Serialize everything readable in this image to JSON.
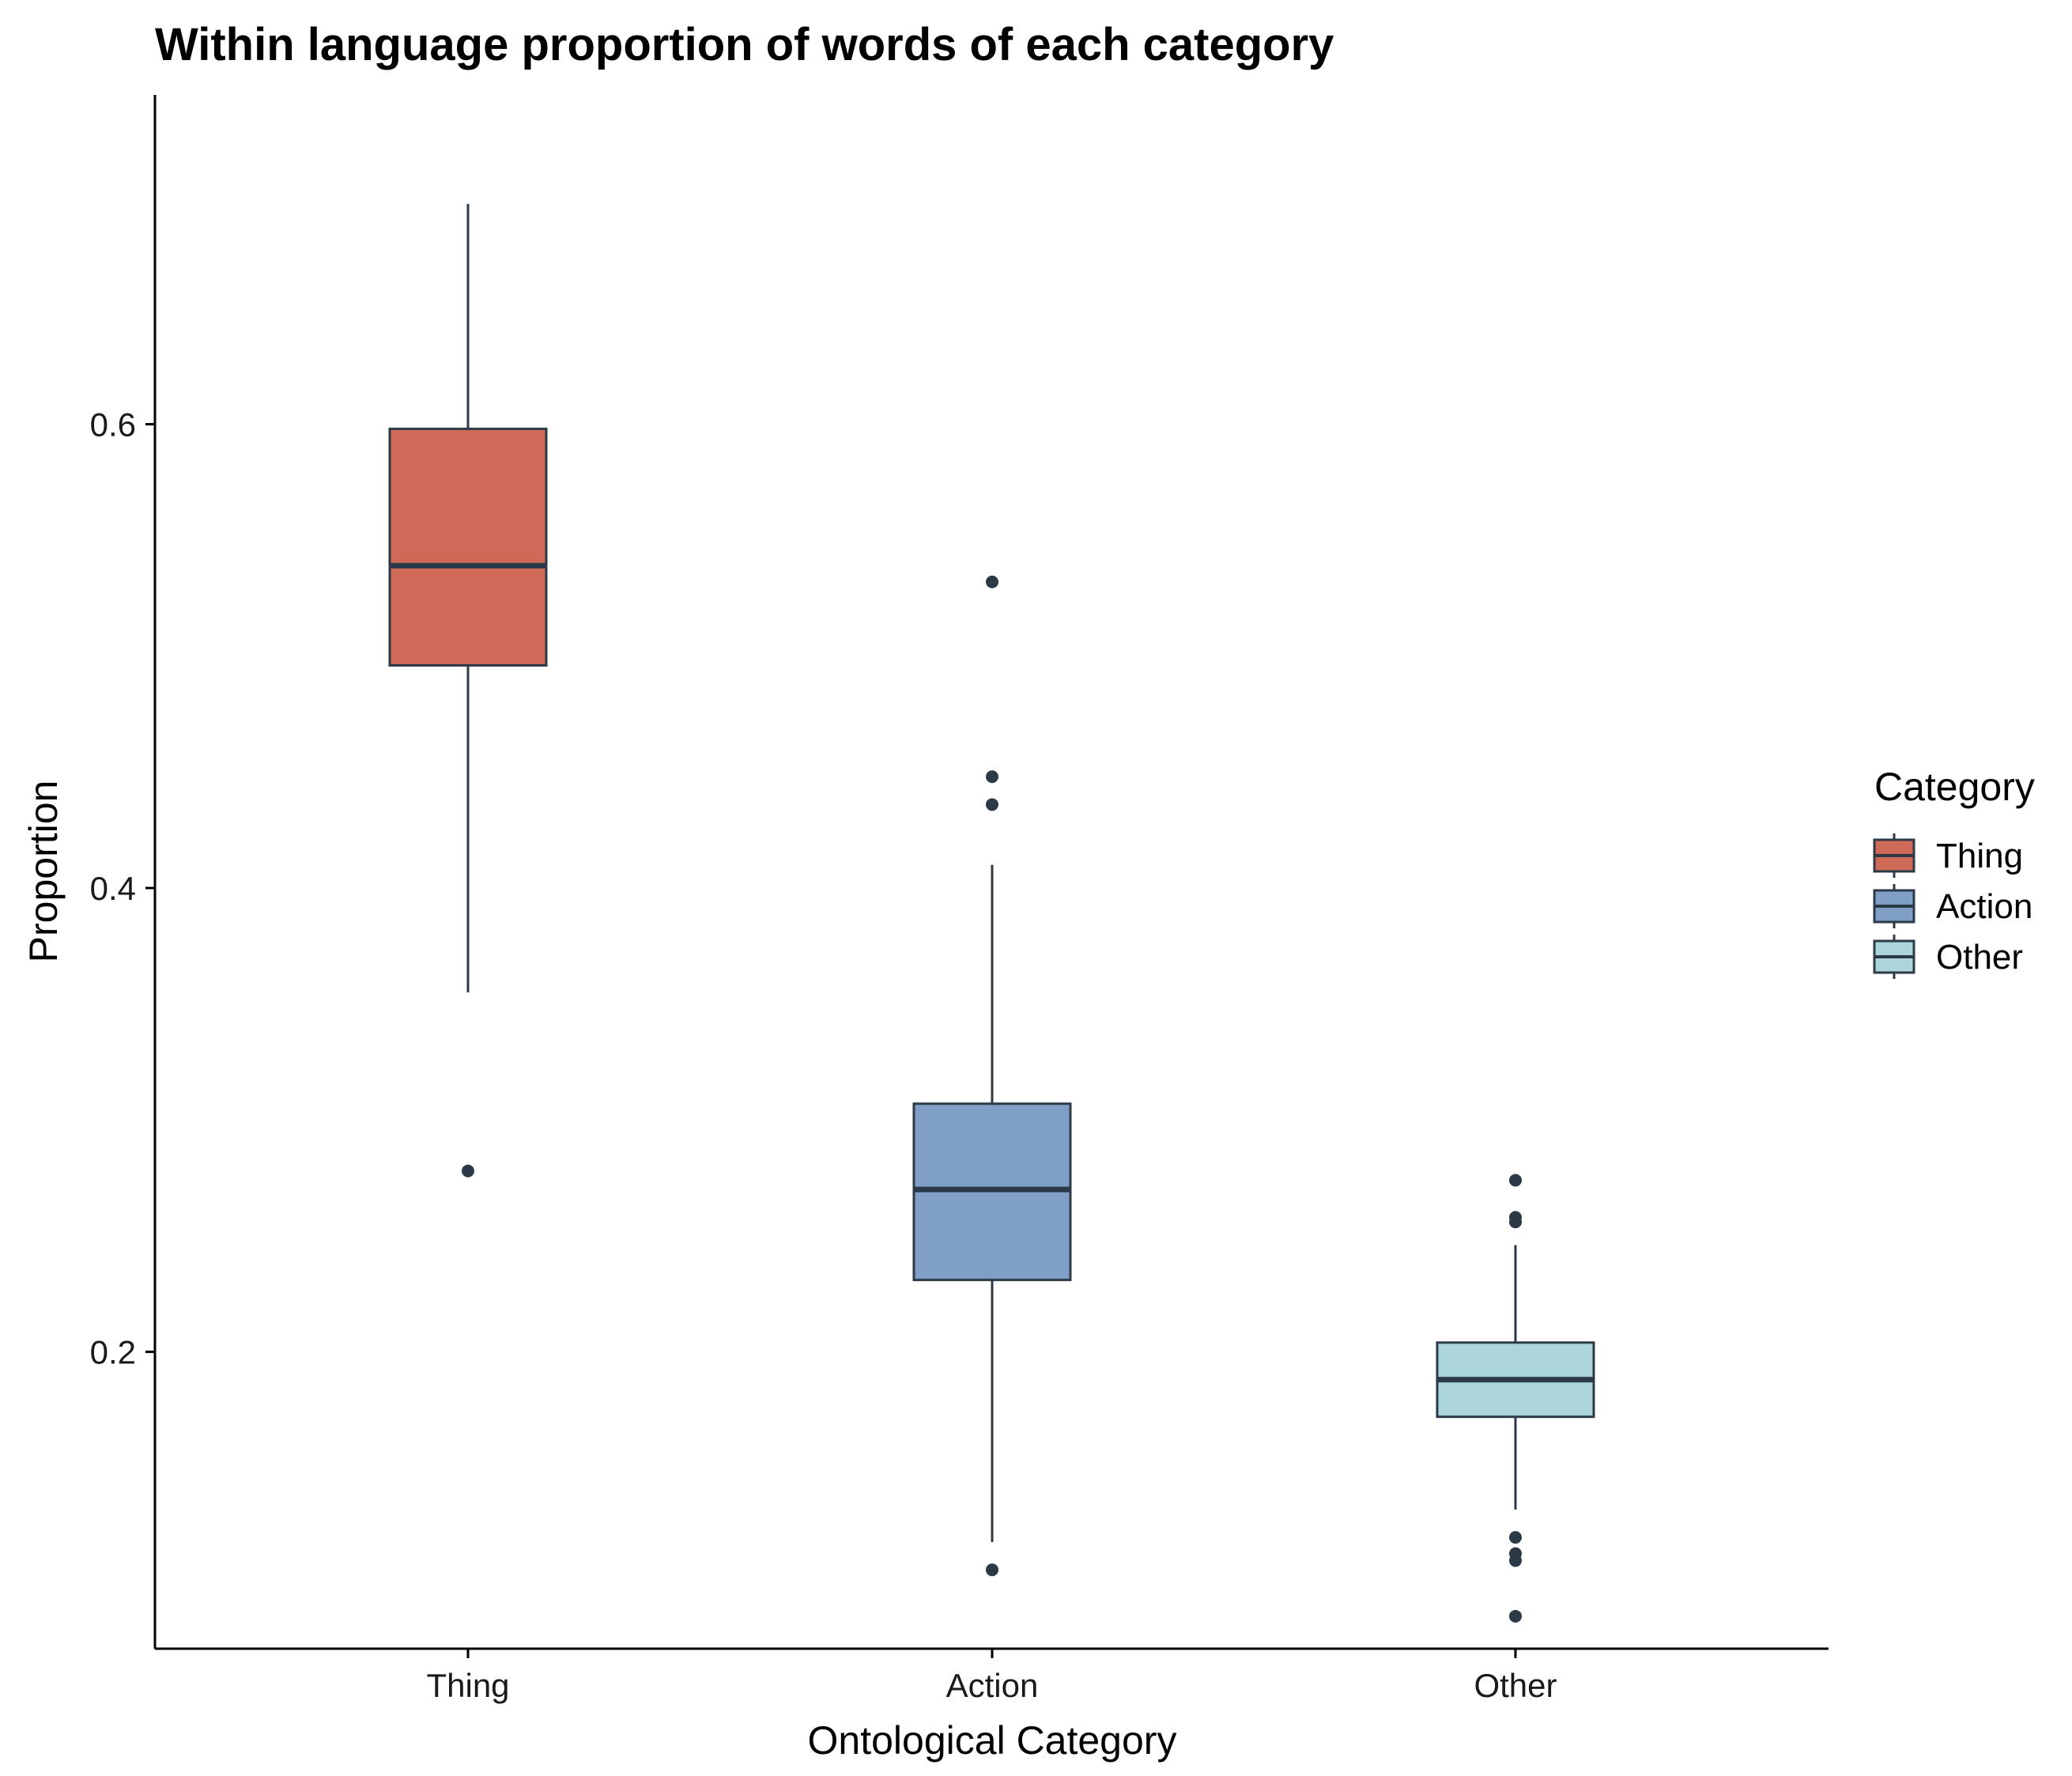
{
  "chart_data": {
    "type": "box",
    "title": "Within language proportion of words of each category",
    "xlabel": "Ontological Category",
    "ylabel": "Proportion",
    "categories": [
      "Thing",
      "Action",
      "Other"
    ],
    "y_ticks": [
      0.2,
      0.4,
      0.6
    ],
    "y_tick_labels": [
      "0.2",
      "0.4",
      "0.6"
    ],
    "ylim": [
      0.072,
      0.742
    ],
    "grid": false,
    "legend": {
      "title": "Category",
      "placement": "right",
      "entries": [
        "Thing",
        "Action",
        "Other"
      ]
    },
    "series": [
      {
        "name": "Thing",
        "color": "#D06A58",
        "whisker_low": 0.355,
        "q1": 0.496,
        "median": 0.539,
        "q3": 0.598,
        "whisker_high": 0.695,
        "outliers": [
          0.278
        ]
      },
      {
        "name": "Action",
        "color": "#7F9FC6",
        "whisker_low": 0.118,
        "q1": 0.231,
        "median": 0.27,
        "q3": 0.307,
        "whisker_high": 0.41,
        "outliers": [
          0.532,
          0.448,
          0.436,
          0.106
        ]
      },
      {
        "name": "Other",
        "color": "#ABD5DB",
        "whisker_low": 0.132,
        "q1": 0.172,
        "median": 0.188,
        "q3": 0.204,
        "whisker_high": 0.246,
        "outliers": [
          0.274,
          0.258,
          0.256,
          0.12,
          0.113,
          0.11,
          0.086
        ]
      }
    ],
    "outline_color": "#2C3A47"
  }
}
